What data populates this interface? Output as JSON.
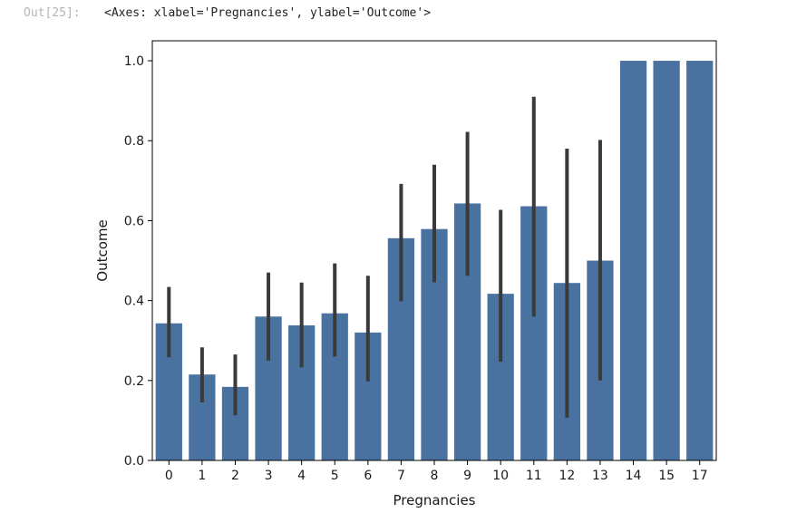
{
  "cell": {
    "prompt": "Out[25]:",
    "output_text": "<Axes: xlabel='Pregnancies', ylabel='Outcome'>"
  },
  "colors": {
    "bar": "#4a72a0",
    "errorbar": "#3a3a3a",
    "axis": "#000000"
  },
  "chart_data": {
    "type": "bar",
    "title": "",
    "xlabel": "Pregnancies",
    "ylabel": "Outcome",
    "ylim": [
      0,
      1.05
    ],
    "yticks": [
      0.0,
      0.2,
      0.4,
      0.6,
      0.8,
      1.0
    ],
    "ytick_labels": [
      "0.0",
      "0.2",
      "0.4",
      "0.6",
      "0.8",
      "1.0"
    ],
    "grid": false,
    "legend": "none",
    "categories": [
      "0",
      "1",
      "2",
      "3",
      "4",
      "5",
      "6",
      "7",
      "8",
      "9",
      "10",
      "11",
      "12",
      "13",
      "14",
      "15",
      "17"
    ],
    "values": [
      0.343,
      0.215,
      0.184,
      0.36,
      0.338,
      0.368,
      0.32,
      0.556,
      0.579,
      0.643,
      0.417,
      0.636,
      0.444,
      0.5,
      1.0,
      1.0,
      1.0
    ],
    "ci_low": [
      0.258,
      0.145,
      0.113,
      0.25,
      0.233,
      0.26,
      0.198,
      0.398,
      0.446,
      0.462,
      0.247,
      0.36,
      0.107,
      0.2,
      null,
      null,
      null
    ],
    "ci_high": [
      0.434,
      0.283,
      0.265,
      0.47,
      0.445,
      0.493,
      0.462,
      0.692,
      0.74,
      0.822,
      0.627,
      0.91,
      0.78,
      0.802,
      null,
      null,
      null
    ]
  }
}
